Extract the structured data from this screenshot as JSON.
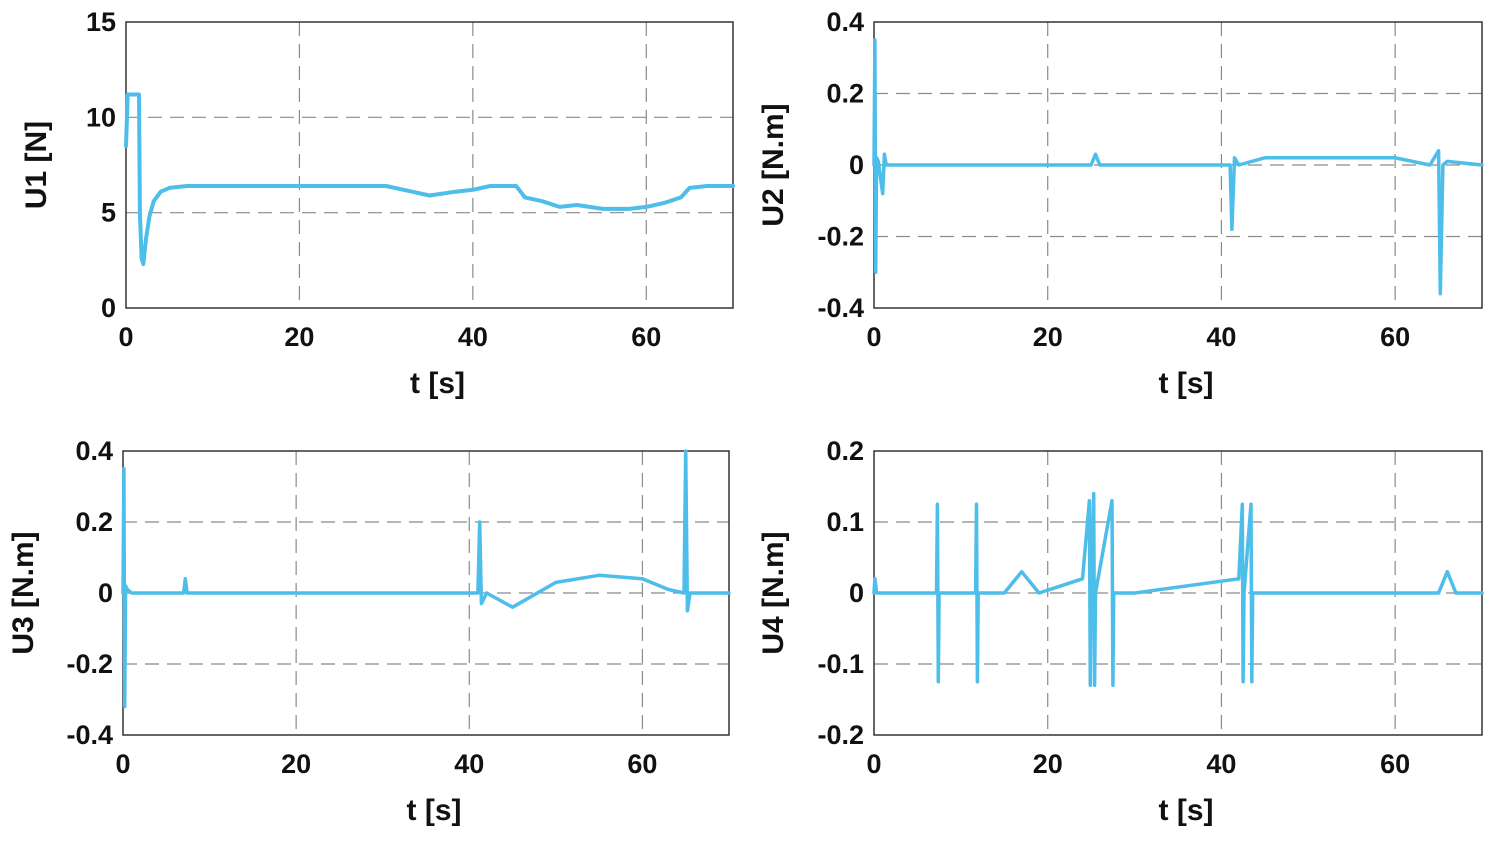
{
  "colors": {
    "line": "#4dbde9",
    "grid": "#8a8a8a",
    "frame": "#333333",
    "text": "#111111"
  },
  "chart_data": [
    {
      "type": "line",
      "id": "u1",
      "xlabel": "t [s]",
      "ylabel": "U1 [N]",
      "xlim": [
        0,
        70
      ],
      "ylim": [
        0,
        15
      ],
      "xticks": [
        0,
        20,
        40,
        60
      ],
      "xtick_labels": [
        "0",
        "20",
        "40",
        "60"
      ],
      "yticks": [
        0,
        5,
        10,
        15
      ],
      "ytick_labels": [
        "0",
        "5",
        "10",
        "15"
      ],
      "grid": true,
      "x": [
        0,
        0.2,
        0.5,
        1.0,
        1.5,
        1.6,
        1.8,
        2.0,
        2.3,
        2.7,
        3.2,
        4.0,
        5.0,
        7.0,
        10,
        15,
        20,
        25,
        28,
        30,
        33,
        35,
        38,
        40,
        42,
        44,
        45,
        46,
        48,
        50,
        52,
        55,
        58,
        60,
        62,
        64,
        65,
        67,
        70
      ],
      "values": [
        8.5,
        11.2,
        11.2,
        11.2,
        11.2,
        5.0,
        2.6,
        2.3,
        3.6,
        4.8,
        5.6,
        6.1,
        6.3,
        6.4,
        6.4,
        6.4,
        6.4,
        6.4,
        6.4,
        6.4,
        6.1,
        5.9,
        6.1,
        6.2,
        6.4,
        6.4,
        6.4,
        5.8,
        5.6,
        5.3,
        5.4,
        5.2,
        5.2,
        5.3,
        5.5,
        5.8,
        6.3,
        6.4,
        6.4
      ]
    },
    {
      "type": "line",
      "id": "u2",
      "xlabel": "t [s]",
      "ylabel": "U2 [N.m]",
      "xlim": [
        0,
        70
      ],
      "ylim": [
        -0.4,
        0.4
      ],
      "xticks": [
        0,
        20,
        40,
        60
      ],
      "xtick_labels": [
        "0",
        "20",
        "40",
        "60"
      ],
      "yticks": [
        -0.4,
        -0.2,
        0,
        0.2,
        0.4
      ],
      "ytick_labels": [
        "-0.4",
        "-0.2",
        "0",
        "0.2",
        "0.4"
      ],
      "grid": true,
      "x": [
        0,
        0.1,
        0.2,
        0.3,
        0.5,
        1.0,
        1.2,
        1.4,
        2,
        5,
        10,
        15,
        20,
        25,
        25.5,
        26,
        30,
        35,
        40,
        41,
        41.2,
        41.5,
        42,
        45,
        50,
        55,
        60,
        64,
        65,
        65.2,
        65.5,
        66,
        70
      ],
      "values": [
        0,
        0.35,
        -0.3,
        0.02,
        0.01,
        -0.08,
        0.03,
        0,
        0,
        0,
        0,
        0,
        0,
        0,
        0.03,
        0,
        0,
        0,
        0,
        0,
        -0.18,
        0.02,
        0,
        0.02,
        0.02,
        0.02,
        0.02,
        0,
        0.04,
        -0.36,
        0,
        0.01,
        0
      ]
    },
    {
      "type": "line",
      "id": "u3",
      "xlabel": "t [s]",
      "ylabel": "U3 [N.m]",
      "xlim": [
        0,
        70
      ],
      "ylim": [
        -0.4,
        0.4
      ],
      "xticks": [
        0,
        20,
        40,
        60
      ],
      "xtick_labels": [
        "0",
        "20",
        "40",
        "60"
      ],
      "yticks": [
        -0.4,
        -0.2,
        0,
        0.2,
        0.4
      ],
      "ytick_labels": [
        "-0.4",
        "-0.2",
        "0",
        "0.2",
        "0.4"
      ],
      "grid": true,
      "x": [
        0,
        0.1,
        0.2,
        0.3,
        0.5,
        1,
        2,
        7,
        7.2,
        7.4,
        10,
        20,
        30,
        40,
        41,
        41.2,
        41.4,
        42,
        45,
        50,
        55,
        60,
        63,
        64.8,
        65,
        65.2,
        65.5,
        66,
        70
      ],
      "values": [
        0,
        0.35,
        -0.32,
        0.02,
        0.01,
        0,
        0,
        0,
        0.04,
        0,
        0,
        0,
        0,
        0,
        0,
        0.2,
        -0.03,
        0,
        -0.04,
        0.03,
        0.05,
        0.04,
        0.01,
        0,
        0.4,
        -0.05,
        0,
        0,
        0
      ]
    },
    {
      "type": "line",
      "id": "u4",
      "xlabel": "t [s]",
      "ylabel": "U4 [N.m]",
      "xlim": [
        0,
        70
      ],
      "ylim": [
        -0.2,
        0.2
      ],
      "xticks": [
        0,
        20,
        40,
        60
      ],
      "xtick_labels": [
        "0",
        "20",
        "40",
        "60"
      ],
      "yticks": [
        -0.2,
        -0.1,
        0,
        0.1,
        0.2
      ],
      "ytick_labels": [
        "-0.2",
        "-0.1",
        "0",
        "0.1",
        "0.2"
      ],
      "grid": true,
      "x": [
        0,
        0.1,
        0.3,
        5,
        7.2,
        7.3,
        7.4,
        7.5,
        11.7,
        11.8,
        11.9,
        12,
        15,
        17,
        19,
        24,
        24.8,
        24.9,
        25.0,
        25.3,
        25.4,
        25.5,
        27.4,
        27.5,
        27.6,
        30,
        42,
        42.4,
        42.5,
        42.6,
        43.4,
        43.5,
        43.6,
        45,
        65,
        66,
        67,
        70
      ],
      "values": [
        0,
        0.02,
        0,
        0,
        0,
        0.125,
        -0.125,
        0,
        0,
        0.125,
        -0.125,
        0,
        0,
        0.03,
        0,
        0.02,
        0.13,
        -0.13,
        0,
        0.14,
        -0.13,
        0,
        0.13,
        -0.13,
        0,
        0,
        0.02,
        0.125,
        -0.125,
        0,
        0.125,
        -0.125,
        0,
        0,
        0,
        0.03,
        0,
        0
      ]
    }
  ]
}
